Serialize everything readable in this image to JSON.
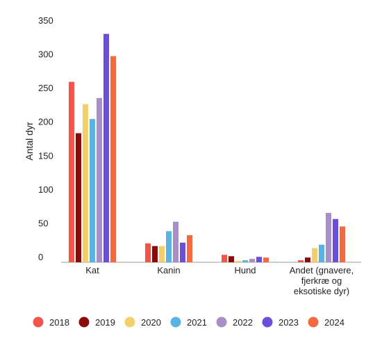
{
  "chart_data": {
    "type": "bar",
    "title": "",
    "xlabel": "",
    "ylabel": "Antal dyr",
    "ylim": [
      0,
      350
    ],
    "yticks": [
      0,
      50,
      100,
      150,
      200,
      250,
      300,
      350
    ],
    "grid": false,
    "legend_position": "bottom",
    "categories": [
      [
        "Kat"
      ],
      [
        "Kanin"
      ],
      [
        "Hund"
      ],
      [
        "Andet (gnavere,",
        "fjerkræ og",
        "eksotiske dyr)"
      ]
    ],
    "series": [
      {
        "name": "2018",
        "color": "#f2564a",
        "values": [
          267,
          28,
          11,
          3
        ]
      },
      {
        "name": "2019",
        "color": "#8b0a0a",
        "values": [
          191,
          24,
          9,
          7
        ]
      },
      {
        "name": "2020",
        "color": "#f2cf6b",
        "values": [
          234,
          24,
          2,
          21
        ]
      },
      {
        "name": "2021",
        "color": "#5ab3e3",
        "values": [
          212,
          46,
          3,
          26
        ]
      },
      {
        "name": "2022",
        "color": "#a98fc8",
        "values": [
          243,
          60,
          5,
          73
        ]
      },
      {
        "name": "2023",
        "color": "#6b4fd8",
        "values": [
          338,
          29,
          8,
          64
        ]
      },
      {
        "name": "2024",
        "color": "#f36a40",
        "values": [
          305,
          40,
          7,
          53
        ]
      }
    ]
  }
}
